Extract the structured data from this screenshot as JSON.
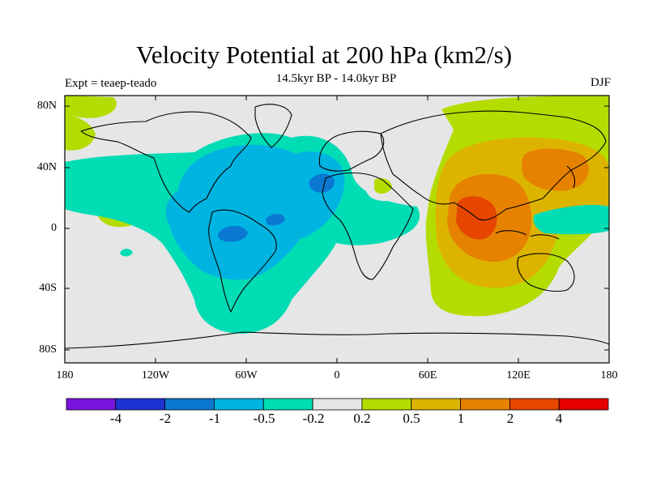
{
  "title": "Velocity Potential at 200 hPa (km2/s)",
  "subtitle": "14.5kyr BP - 14.0kyr BP",
  "left_label": "Expt = teaep-teado",
  "right_label": "DJF",
  "axes": {
    "lat_ticks": [
      "80N",
      "40N",
      "0",
      "40S",
      "80S"
    ],
    "lon_ticks": [
      "180",
      "120W",
      "60W",
      "0",
      "60E",
      "120E",
      "180"
    ]
  },
  "colorbar": {
    "colors": [
      "#7b14dc",
      "#1e32d2",
      "#0a78d2",
      "#00b4e1",
      "#00dcb4",
      "#e6e6e6",
      "#b4dc00",
      "#dcb400",
      "#e68200",
      "#e64600",
      "#e60000"
    ],
    "labels": [
      "-4",
      "-2",
      "-1",
      "-0.5",
      "-0.2",
      "0.2",
      "0.5",
      "1",
      "2",
      "4"
    ]
  },
  "colors": {
    "land_background": "#e6e6e6",
    "pos_low": "#b4dc00",
    "pos_mid": "#dcb400",
    "pos_high": "#e68200",
    "pos_max": "#e64600",
    "neg_low": "#00dcb4",
    "neg_mid": "#00b4e1",
    "neg_high": "#0a78d2"
  }
}
